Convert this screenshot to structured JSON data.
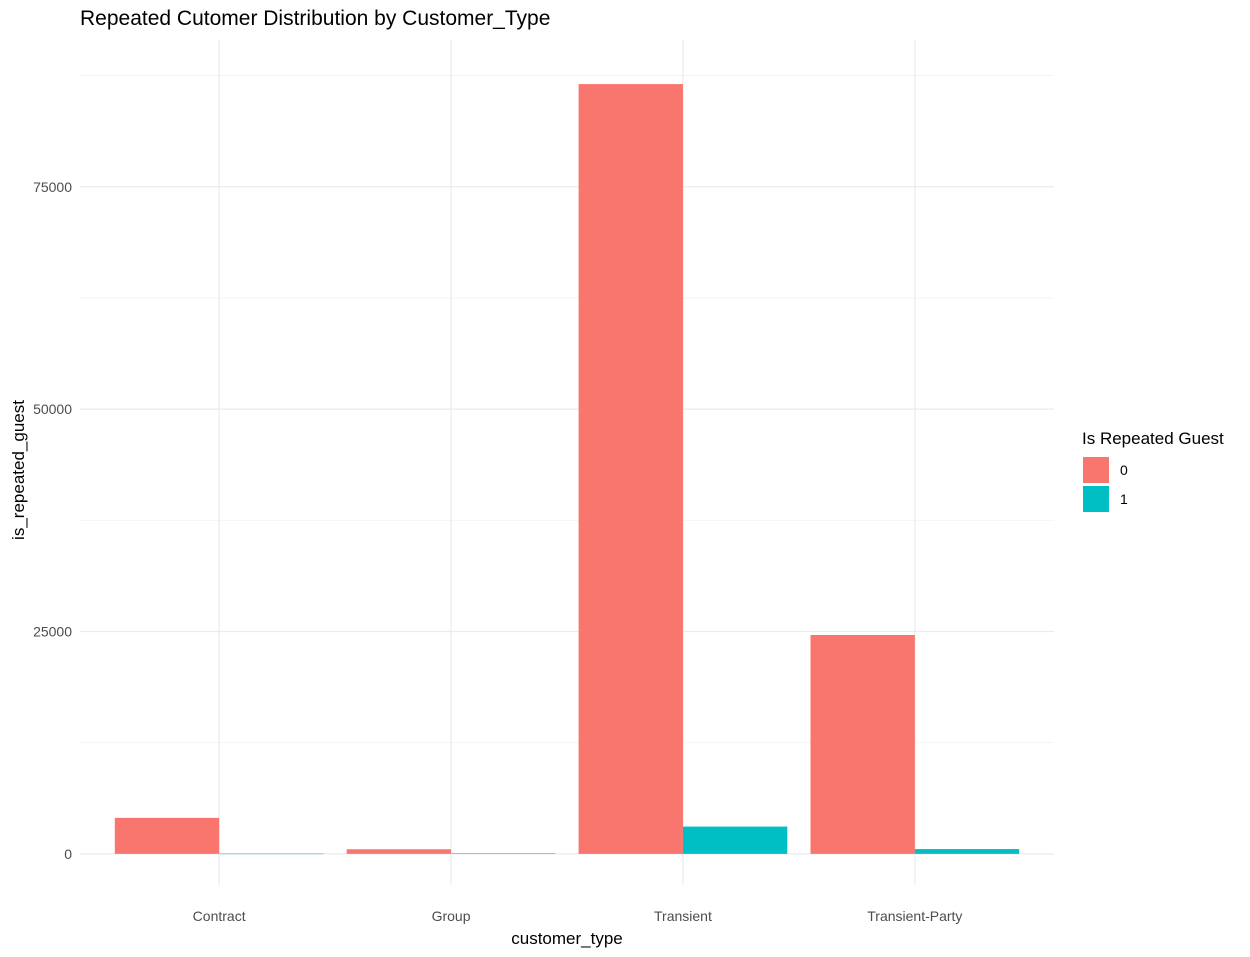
{
  "chart_data": {
    "type": "bar",
    "title": "Repeated Cutomer Distribution by Customer_Type",
    "xlabel": "customer_type",
    "ylabel": "is_repeated_guest",
    "categories": [
      "Contract",
      "Group",
      "Transient",
      "Transient-Party"
    ],
    "series": [
      {
        "name": "0",
        "color": "#F8766D",
        "values": [
          4049,
          518,
          86545,
          24608
        ]
      },
      {
        "name": "1",
        "color": "#00BFC4",
        "values": [
          27,
          59,
          3068,
          539
        ]
      }
    ],
    "y_ticks": [
      0,
      25000,
      50000,
      75000
    ],
    "y_tick_labels": [
      "0",
      "25000",
      "50000",
      "75000"
    ],
    "ylim": [
      -3500,
      91500
    ],
    "grid": true,
    "legend": {
      "title": "Is Repeated Guest",
      "position": "right"
    }
  }
}
